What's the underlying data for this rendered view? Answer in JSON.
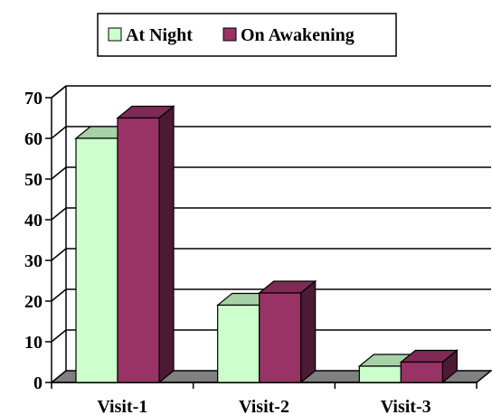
{
  "colors": {
    "at_night": "#ccffcc",
    "on_awakening": "#993366",
    "floor": "#808080",
    "gridline": "#000000"
  },
  "chart_data": {
    "type": "bar",
    "style": "3d-clustered-column",
    "categories": [
      "Visit-1",
      "Visit-2",
      "Visit-3"
    ],
    "series": [
      {
        "name": "At Night",
        "values": [
          60,
          19,
          4
        ]
      },
      {
        "name": "On Awakening",
        "values": [
          65,
          22,
          5
        ]
      }
    ],
    "ylim": [
      0,
      70
    ],
    "yticks": [
      0,
      10,
      20,
      30,
      40,
      50,
      60,
      70
    ],
    "grid": true,
    "legend": "top-center"
  }
}
